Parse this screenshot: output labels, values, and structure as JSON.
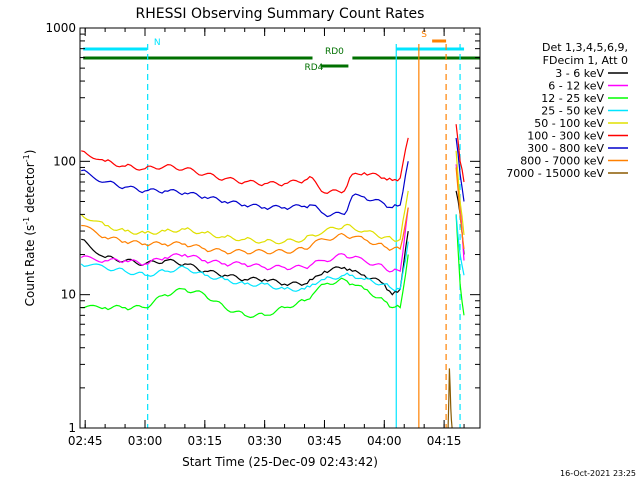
{
  "chart_data": {
    "type": "line",
    "title": "RHESSI Observing Summary Count Rates",
    "xlabel": "Start Time (25-Dec-09 02:43:42)",
    "ylabel_prefix": "Count Rate (s",
    "ylabel_sup1": "-1",
    "ylabel_mid": " detector",
    "ylabel_sup2": "-1",
    "ylabel_suffix": ")",
    "yscale": "log",
    "ylim": [
      1,
      1000
    ],
    "xlim": [
      "02:43:42",
      "04:24:00"
    ],
    "x_tick_labels": [
      "02:45",
      "03:00",
      "03:15",
      "03:30",
      "03:45",
      "04:00",
      "04:15"
    ],
    "y_tick_labels": [
      "1",
      "10",
      "100",
      "1000"
    ],
    "legend_header": [
      "Det 1,3,4,5,6,9,",
      "FDecim 1, Att 0"
    ],
    "legend_placement": "right",
    "timestamp": "16-Oct-2021 23:25",
    "flags": [
      {
        "label": "N",
        "color": "#00e5ff",
        "segments": [
          [
            "02:44:30",
            "03:00:30"
          ],
          [
            "04:03:00",
            "04:20:00"
          ]
        ]
      },
      {
        "label": "S",
        "color": "#ff8000",
        "segments": [
          [
            "04:12:00",
            "04:15:30"
          ]
        ]
      },
      {
        "label": "RD0",
        "color": "#007000",
        "segments": [
          [
            "02:44:30",
            "03:42:00"
          ],
          [
            "03:52:00",
            "04:24:00"
          ]
        ]
      },
      {
        "label": "RD4",
        "color": "#007000",
        "segments": [
          [
            "03:44:00",
            "03:51:00"
          ]
        ]
      }
    ],
    "vlines": [
      {
        "time": "03:00:40",
        "color": "#00e5ff",
        "style": "dashed"
      },
      {
        "time": "04:03:00",
        "color": "#00e5ff",
        "style": "solid"
      },
      {
        "time": "04:08:40",
        "color": "#ff8000",
        "style": "solid"
      },
      {
        "time": "04:15:30",
        "color": "#ff8000",
        "style": "dashed"
      },
      {
        "time": "04:19:00",
        "color": "#00e5ff",
        "style": "dashed"
      }
    ],
    "series": [
      {
        "name": "3 - 6 keV",
        "color": "#000000",
        "x": [
          "02:44",
          "02:50",
          "02:55",
          "03:00",
          "03:05",
          "03:10",
          "03:15",
          "03:20",
          "03:25",
          "03:30",
          "03:35",
          "03:40",
          "03:42",
          "03:45",
          "03:50",
          "03:52",
          "03:55",
          "04:00",
          "04:02",
          "04:04",
          "04:06",
          "04:10",
          "04:15",
          "04:18",
          "04:19",
          "04:20"
        ],
        "values": [
          26,
          19,
          18,
          17,
          18,
          17,
          15,
          14,
          13,
          13,
          12,
          12,
          13,
          15,
          16,
          15,
          14,
          12,
          10,
          11,
          30,
          null,
          null,
          60,
          40,
          20
        ]
      },
      {
        "name": "6 - 12 keV",
        "color": "#ff00ff",
        "x": [
          "02:44",
          "02:50",
          "02:55",
          "03:00",
          "03:05",
          "03:10",
          "03:15",
          "03:20",
          "03:25",
          "03:30",
          "03:35",
          "03:40",
          "03:42",
          "03:45",
          "03:50",
          "03:52",
          "03:55",
          "04:00",
          "04:02",
          "04:04",
          "04:06",
          "04:10",
          "04:15",
          "04:18",
          "04:19",
          "04:20"
        ],
        "values": [
          19,
          18,
          18,
          17,
          19,
          20,
          18,
          17,
          17,
          16,
          16,
          16,
          17,
          18,
          20,
          19,
          18,
          16,
          15,
          15,
          45,
          null,
          null,
          95,
          50,
          18
        ]
      },
      {
        "name": "12 - 25 keV",
        "color": "#00ff00",
        "x": [
          "02:44",
          "02:50",
          "02:55",
          "03:00",
          "03:05",
          "03:10",
          "03:15",
          "03:20",
          "03:25",
          "03:30",
          "03:35",
          "03:40",
          "03:42",
          "03:45",
          "03:50",
          "03:52",
          "03:55",
          "04:00",
          "04:02",
          "04:04",
          "04:06",
          "04:10",
          "04:15",
          "04:18",
          "04:19",
          "04:20"
        ],
        "values": [
          8,
          8,
          8,
          8,
          10,
          11,
          10,
          8,
          7,
          7,
          8,
          9,
          10,
          12,
          13,
          12,
          11,
          9,
          8,
          8,
          20,
          null,
          null,
          40,
          12,
          7
        ]
      },
      {
        "name": "25 - 50 keV",
        "color": "#00e5ff",
        "x": [
          "02:44",
          "02:50",
          "02:55",
          "03:00",
          "03:05",
          "03:10",
          "03:15",
          "03:20",
          "03:25",
          "03:30",
          "03:35",
          "03:40",
          "03:42",
          "03:45",
          "03:50",
          "03:52",
          "03:55",
          "04:00",
          "04:02",
          "04:04",
          "04:06",
          "04:10",
          "04:15",
          "04:18",
          "04:19",
          "04:20"
        ],
        "values": [
          17,
          16,
          15,
          14,
          15,
          16,
          14,
          13,
          12,
          12,
          11,
          11,
          12,
          13,
          14,
          14,
          13,
          12,
          11,
          11,
          25,
          null,
          null,
          40,
          20,
          14
        ]
      },
      {
        "name": "50 - 100 keV",
        "color": "#e0e000",
        "x": [
          "02:44",
          "02:50",
          "02:55",
          "03:00",
          "03:05",
          "03:10",
          "03:15",
          "03:20",
          "03:25",
          "03:30",
          "03:35",
          "03:40",
          "03:42",
          "03:45",
          "03:50",
          "03:52",
          "03:55",
          "04:00",
          "04:02",
          "04:04",
          "04:06",
          "04:10",
          "04:15",
          "04:18",
          "04:19",
          "04:20"
        ],
        "values": [
          40,
          33,
          30,
          29,
          30,
          31,
          29,
          27,
          26,
          25,
          25,
          26,
          28,
          30,
          33,
          32,
          30,
          27,
          26,
          26,
          60,
          null,
          null,
          120,
          50,
          28
        ]
      },
      {
        "name": "100 - 300 keV",
        "color": "#ff0000",
        "x": [
          "02:44",
          "02:50",
          "02:55",
          "03:00",
          "03:05",
          "03:10",
          "03:15",
          "03:20",
          "03:25",
          "03:30",
          "03:35",
          "03:40",
          "03:42",
          "03:45",
          "03:50",
          "03:52",
          "03:55",
          "04:00",
          "04:02",
          "04:04",
          "04:06",
          "04:10",
          "04:15",
          "04:18",
          "04:19",
          "04:20"
        ],
        "values": [
          120,
          100,
          92,
          88,
          92,
          88,
          80,
          74,
          70,
          68,
          68,
          72,
          75,
          58,
          60,
          80,
          82,
          75,
          72,
          75,
          150,
          null,
          null,
          190,
          100,
          70
        ]
      },
      {
        "name": "300 - 800 keV",
        "color": "#0000cc",
        "x": [
          "02:44",
          "02:50",
          "02:55",
          "03:00",
          "03:05",
          "03:10",
          "03:15",
          "03:20",
          "03:25",
          "03:30",
          "03:35",
          "03:40",
          "03:42",
          "03:45",
          "03:50",
          "03:52",
          "03:55",
          "04:00",
          "04:02",
          "04:04",
          "04:06",
          "04:10",
          "04:15",
          "04:18",
          "04:19",
          "04:20"
        ],
        "values": [
          85,
          70,
          64,
          60,
          60,
          58,
          54,
          50,
          47,
          45,
          45,
          46,
          47,
          40,
          40,
          55,
          54,
          48,
          45,
          47,
          100,
          null,
          null,
          150,
          80,
          50
        ]
      },
      {
        "name": "800 - 7000 keV",
        "color": "#ff8000",
        "x": [
          "02:44",
          "02:50",
          "02:55",
          "03:00",
          "03:05",
          "03:10",
          "03:15",
          "03:20",
          "03:25",
          "03:30",
          "03:35",
          "03:40",
          "03:42",
          "03:45",
          "03:50",
          "03:52",
          "03:55",
          "04:00",
          "04:02",
          "04:04",
          "04:06",
          "04:10",
          "04:15",
          "04:18",
          "04:19",
          "04:20"
        ],
        "values": [
          33,
          27,
          25,
          24,
          24,
          24,
          22,
          21,
          21,
          21,
          21,
          22,
          24,
          26,
          28,
          27,
          26,
          23,
          22,
          22,
          45,
          null,
          null,
          90,
          40,
          22
        ]
      },
      {
        "name": "7000 - 15000 keV",
        "color": "#8b5a00",
        "x": [
          "04:16:00",
          "04:16:20",
          "04:16:40",
          "04:17:00"
        ],
        "values": [
          1.0,
          2.8,
          1.4,
          1.0
        ]
      }
    ]
  }
}
